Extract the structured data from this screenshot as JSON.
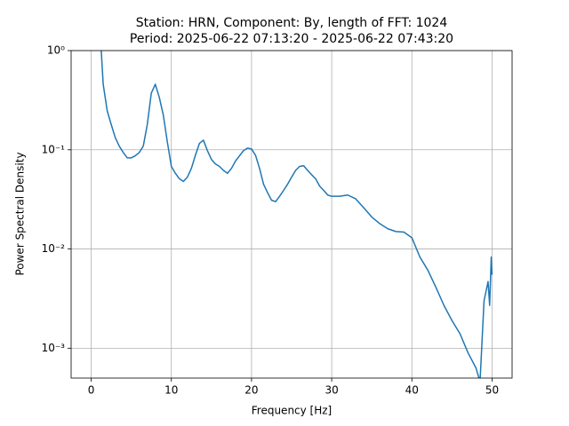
{
  "chart_data": {
    "type": "line",
    "title": "Station: HRN, Component: By, length of FFT: 1024",
    "subtitle": "Period: 2025-06-22 07:13:20 - 2025-06-22 07:43:20",
    "x_label": "Frequency [Hz]",
    "y_label": "Power Spectral Density",
    "log_y": true,
    "grid": true,
    "xlim": [
      -2.5,
      52.5
    ],
    "xticks": [
      0,
      10,
      20,
      30,
      40,
      50
    ],
    "ylim": [
      0.0005,
      1
    ],
    "yticks": [
      {
        "value": 1,
        "label": "10⁰"
      },
      {
        "value": 0.1,
        "label": "10⁻¹"
      },
      {
        "value": 0.01,
        "label": "10⁻²"
      },
      {
        "value": 0.001,
        "label": "10⁻³"
      }
    ],
    "x": [
      1.2,
      1.5,
      2,
      2.5,
      3,
      3.5,
      4,
      4.5,
      5,
      5.5,
      6,
      6.5,
      7,
      7.5,
      8,
      8.5,
      9,
      9.5,
      10,
      10.5,
      11,
      11.5,
      12,
      12.5,
      13,
      13.5,
      14,
      14.5,
      15,
      15.5,
      16,
      16.5,
      17,
      17.5,
      18,
      18.5,
      19,
      19.5,
      20,
      20.5,
      21,
      21.5,
      22,
      22.5,
      23,
      23.5,
      24,
      24.5,
      25,
      25.5,
      26,
      26.5,
      27,
      27.5,
      28,
      28.5,
      29,
      29.5,
      30,
      31,
      32,
      33,
      34,
      35,
      36,
      37,
      38,
      39,
      40,
      41,
      42,
      43,
      44,
      45,
      46,
      47,
      48,
      48.5,
      49,
      49.5,
      49.7,
      49.9,
      50
    ],
    "series": [
      {
        "name": "PSD",
        "color": "#1f77b4",
        "values": [
          1.2,
          0.458,
          0.247,
          0.18,
          0.133,
          0.109,
          0.094,
          0.083,
          0.083,
          0.087,
          0.094,
          0.109,
          0.18,
          0.373,
          0.458,
          0.337,
          0.223,
          0.12,
          0.068,
          0.058,
          0.051,
          0.048,
          0.053,
          0.065,
          0.088,
          0.116,
          0.125,
          0.098,
          0.08,
          0.072,
          0.068,
          0.062,
          0.058,
          0.065,
          0.077,
          0.087,
          0.098,
          0.104,
          0.102,
          0.088,
          0.065,
          0.045,
          0.037,
          0.031,
          0.03,
          0.034,
          0.039,
          0.045,
          0.053,
          0.062,
          0.068,
          0.069,
          0.062,
          0.056,
          0.051,
          0.043,
          0.039,
          0.035,
          0.034,
          0.034,
          0.035,
          0.032,
          0.026,
          0.021,
          0.018,
          0.016,
          0.015,
          0.0148,
          0.013,
          0.0083,
          0.0061,
          0.0041,
          0.0027,
          0.0019,
          0.0014,
          0.0009,
          0.00063,
          0.00046,
          0.003,
          0.0047,
          0.0027,
          0.0083,
          0.0055
        ]
      }
    ]
  }
}
